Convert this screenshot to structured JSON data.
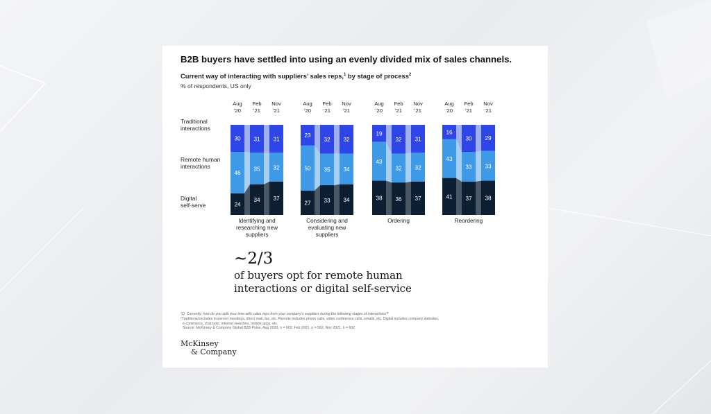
{
  "chart_data": {
    "type": "bar",
    "title": "B2B buyers have settled into using an evenly divided mix of sales channels.",
    "subtitle": "Current way of interacting with suppliers’ sales reps,¹ by stage of process²",
    "unit": "% of respondents, US only",
    "periods": [
      "Aug '20",
      "Feb '21",
      "Nov '21"
    ],
    "period_top": [
      "Aug",
      "Feb",
      "Nov"
    ],
    "period_bottom": [
      "'20",
      "'21",
      "'21"
    ],
    "row_labels": [
      [
        "Traditional",
        "interactions"
      ],
      [
        "Remote human",
        "interactions"
      ],
      [
        "Digital",
        "self-serve"
      ]
    ],
    "series": [
      {
        "name": "Traditional interactions",
        "color": "#2e45e8"
      },
      {
        "name": "Remote human interactions",
        "color": "#3e9ae6"
      },
      {
        "name": "Digital self-serve",
        "color": "#0b1e32"
      }
    ],
    "groups": [
      {
        "label": [
          "Identifying and",
          "researching new",
          "suppliers"
        ],
        "traditional": [
          30,
          31,
          31
        ],
        "remote": [
          46,
          35,
          32
        ],
        "digital": [
          24,
          34,
          37
        ]
      },
      {
        "label": [
          "Considering and",
          "evaluating new",
          "suppliers"
        ],
        "traditional": [
          23,
          32,
          32
        ],
        "remote": [
          50,
          35,
          34
        ],
        "digital": [
          27,
          33,
          34
        ]
      },
      {
        "label": [
          "Ordering"
        ],
        "traditional": [
          19,
          32,
          31
        ],
        "remote": [
          43,
          32,
          32
        ],
        "digital": [
          38,
          36,
          37
        ]
      },
      {
        "label": [
          "Reordering"
        ],
        "traditional": [
          16,
          30,
          29
        ],
        "remote": [
          43,
          33,
          33
        ],
        "digital": [
          41,
          37,
          38
        ]
      }
    ]
  },
  "callout": {
    "big": "~2/3",
    "text": "of buyers opt for remote human interactions or digital self-service"
  },
  "footnotes": {
    "q": "¹Q: Currently, how do you split your time with sales reps from your company’s suppliers during the following stages of interactions?",
    "def1": "²Traditional includes in-person meetings, direct mail, fax, etc. Remote includes phone calls, video conference calls, emails, etc. Digital includes company websites,",
    "def2": "e-commerce, chat bots, internet searches, mobile apps, etc.",
    "source": "Source: McKinsey & Company Global B2B Pulse, Aug 2020, n = 602; Feb 2021, n = 562; Nov 2021, n = 602"
  },
  "logo": {
    "line1": "McKinsey",
    "line2": "& Company"
  }
}
